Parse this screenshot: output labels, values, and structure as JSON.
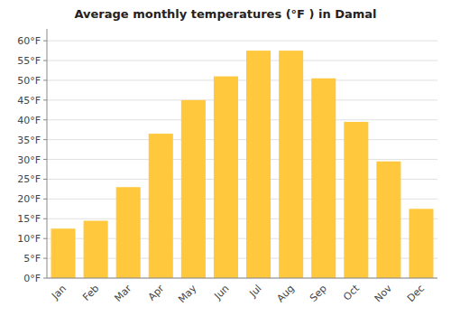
{
  "chart_data": {
    "type": "bar",
    "title": "Average monthly temperatures (°F ) in Damal",
    "categories": [
      "Jan",
      "Feb",
      "Mar",
      "Apr",
      "May",
      "Jun",
      "Jul",
      "Aug",
      "Sep",
      "Oct",
      "Nov",
      "Dec"
    ],
    "values": [
      12.5,
      14.5,
      23.0,
      36.5,
      45.0,
      51.0,
      57.5,
      57.5,
      50.5,
      39.5,
      29.5,
      17.5
    ],
    "color": "#FFC83D",
    "ylim": [
      0,
      63
    ],
    "yticks": [
      {
        "value": 0,
        "label": "0°F"
      },
      {
        "value": 5,
        "label": "5°F"
      },
      {
        "value": 10,
        "label": "10°F"
      },
      {
        "value": 15,
        "label": "15°F"
      },
      {
        "value": 20,
        "label": "20°F"
      },
      {
        "value": 25,
        "label": "25°F"
      },
      {
        "value": 30,
        "label": "30°F"
      },
      {
        "value": 35,
        "label": "35°F"
      },
      {
        "value": 40,
        "label": "40°F"
      },
      {
        "value": 45,
        "label": "45°F"
      },
      {
        "value": 50,
        "label": "50°F"
      },
      {
        "value": 55,
        "label": "55°F"
      },
      {
        "value": 60,
        "label": "60°F"
      }
    ],
    "grid": true
  }
}
